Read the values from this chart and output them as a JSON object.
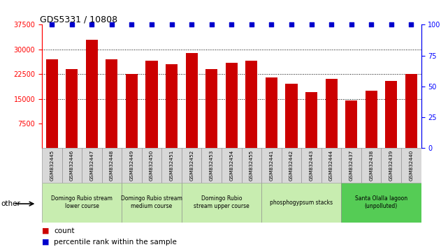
{
  "title": "GDS5331 / 10808",
  "samples": [
    "GSM832445",
    "GSM832446",
    "GSM832447",
    "GSM832448",
    "GSM832449",
    "GSM832450",
    "GSM832451",
    "GSM832452",
    "GSM832453",
    "GSM832454",
    "GSM832455",
    "GSM832441",
    "GSM832442",
    "GSM832443",
    "GSM832444",
    "GSM832437",
    "GSM832438",
    "GSM832439",
    "GSM832440"
  ],
  "counts": [
    27000,
    24000,
    33000,
    27000,
    22500,
    26500,
    25500,
    29000,
    24000,
    26000,
    26500,
    21500,
    19500,
    17000,
    21000,
    14500,
    17500,
    20500,
    22500
  ],
  "percentiles": [
    100,
    100,
    100,
    100,
    100,
    100,
    100,
    100,
    100,
    100,
    100,
    100,
    100,
    100,
    100,
    100,
    100,
    100,
    100
  ],
  "bar_color": "#cc0000",
  "dot_color": "#0000cc",
  "ylim_left": [
    0,
    37500
  ],
  "ylim_right": [
    0,
    100
  ],
  "yticks_left": [
    7500,
    15000,
    22500,
    30000,
    37500
  ],
  "yticks_right": [
    0,
    25,
    50,
    75,
    100
  ],
  "groups": [
    {
      "label": "Domingo Rubio stream\nlower course",
      "start": 0,
      "end": 4,
      "color": "#c8edb0"
    },
    {
      "label": "Domingo Rubio stream\nmedium course",
      "start": 4,
      "end": 7,
      "color": "#c8edb0"
    },
    {
      "label": "Domingo Rubio\nstream upper course",
      "start": 7,
      "end": 11,
      "color": "#c8edb0"
    },
    {
      "label": "phosphogypsum stacks",
      "start": 11,
      "end": 15,
      "color": "#c8edb0"
    },
    {
      "label": "Santa Olalla lagoon\n(unpolluted)",
      "start": 15,
      "end": 19,
      "color": "#55cc55"
    }
  ],
  "other_label": "other",
  "legend_count_label": "count",
  "legend_pct_label": "percentile rank within the sample",
  "sample_box_color": "#d8d8d8",
  "gridline_vals": [
    15000,
    22500,
    30000
  ]
}
